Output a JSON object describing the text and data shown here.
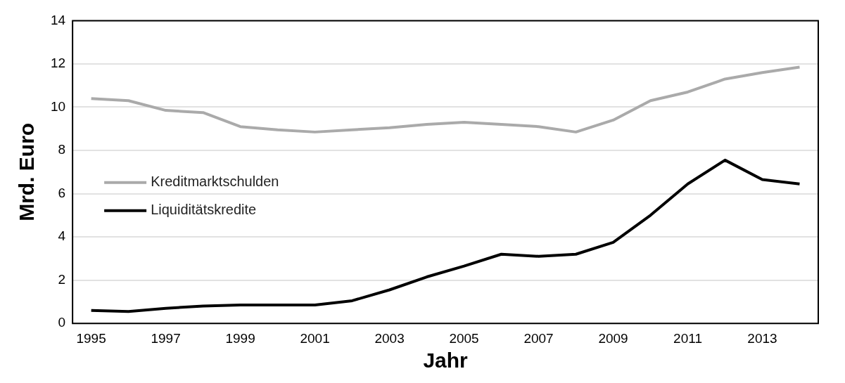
{
  "chart_data": {
    "type": "line",
    "xlabel": "Jahr",
    "ylabel": "Mrd. Euro",
    "x": [
      1995,
      1996,
      1997,
      1998,
      1999,
      2000,
      2001,
      2002,
      2003,
      2004,
      2005,
      2006,
      2007,
      2008,
      2009,
      2010,
      2011,
      2012,
      2013,
      2014
    ],
    "series": [
      {
        "name": "Kreditmarktschulden",
        "color": "#aaaaaa",
        "values": [
          10.4,
          10.3,
          9.85,
          9.75,
          9.1,
          8.95,
          8.85,
          8.95,
          9.05,
          9.2,
          9.3,
          9.2,
          9.1,
          8.85,
          9.4,
          10.3,
          10.7,
          11.3,
          11.6,
          11.85
        ]
      },
      {
        "name": "Liquiditätskredite",
        "color": "#000000",
        "values": [
          0.6,
          0.55,
          0.7,
          0.8,
          0.85,
          0.85,
          0.85,
          1.05,
          1.55,
          2.15,
          2.65,
          3.2,
          3.1,
          3.2,
          3.75,
          5.0,
          6.45,
          7.55,
          6.65,
          6.45
        ]
      }
    ],
    "xlim": [
      1994.5,
      2014.5
    ],
    "xticks": [
      1995,
      1997,
      1999,
      2001,
      2003,
      2005,
      2007,
      2009,
      2011,
      2013
    ],
    "ylim": [
      0,
      14
    ],
    "yticks": [
      0,
      2,
      4,
      6,
      8,
      10,
      12,
      14
    ],
    "grid": "y",
    "legend": "left",
    "marker": "none",
    "line_style": "solid"
  }
}
